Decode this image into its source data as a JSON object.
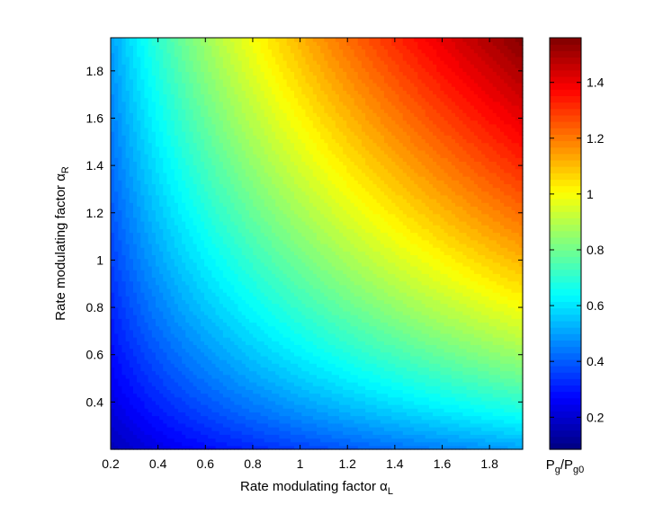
{
  "chart_data": {
    "type": "heatmap",
    "title": "",
    "xlabel": {
      "text": "Rate modulating factor α",
      "subscript": "L"
    },
    "ylabel": {
      "text": "Rate modulating factor α",
      "subscript": "R"
    },
    "colorbar_label": {
      "base1": "P",
      "sub1": "g",
      "slash": "/P",
      "sub2": "g0"
    },
    "xlim": [
      0.2,
      1.94
    ],
    "ylim": [
      0.2,
      1.94
    ],
    "xticks": [
      0.2,
      0.4,
      0.6,
      0.8,
      1.0,
      1.2,
      1.4,
      1.6,
      1.8
    ],
    "xtick_labels": [
      "0.2",
      "0.4",
      "0.6",
      "0.8",
      "1",
      "1.2",
      "1.4",
      "1.6",
      "1.8"
    ],
    "yticks": [
      0.4,
      0.6,
      0.8,
      1.0,
      1.2,
      1.4,
      1.6,
      1.8
    ],
    "ytick_labels": [
      "0.4",
      "0.6",
      "0.8",
      "1",
      "1.2",
      "1.4",
      "1.6",
      "1.8"
    ],
    "colorbar_range": [
      0.085,
      1.56
    ],
    "colorbar_ticks": [
      0.2,
      0.4,
      0.6,
      0.8,
      1.0,
      1.2,
      1.4
    ],
    "colorbar_tick_labels": [
      "0.2",
      "0.4",
      "0.6",
      "0.8",
      "1",
      "1.2",
      "1.4"
    ],
    "colormap": "jet",
    "levels": 64,
    "grid": false,
    "surface": {
      "description": "Pg/Pg0 ≈ sqrt(alpha_L * alpha_R) * 0.8",
      "sample_values": [
        {
          "alpha_L": 0.2,
          "alpha_R": 0.2,
          "value": 0.16
        },
        {
          "alpha_L": 1.0,
          "alpha_R": 1.0,
          "value": 0.8
        },
        {
          "alpha_L": 1.94,
          "alpha_R": 1.94,
          "value": 1.55
        },
        {
          "alpha_L": 0.2,
          "alpha_R": 1.94,
          "value": 0.5
        },
        {
          "alpha_L": 1.94,
          "alpha_R": 0.2,
          "value": 0.5
        }
      ]
    }
  }
}
